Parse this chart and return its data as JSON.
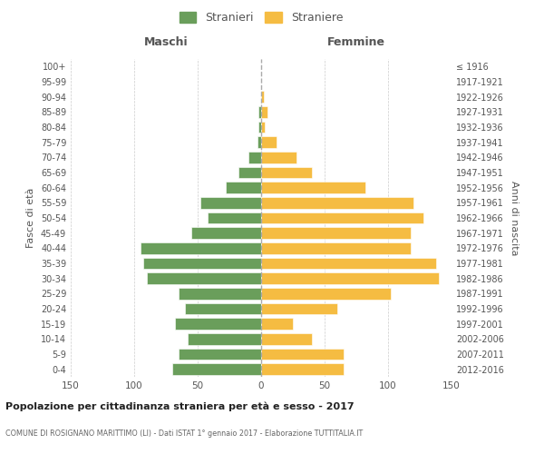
{
  "age_groups": [
    "0-4",
    "5-9",
    "10-14",
    "15-19",
    "20-24",
    "25-29",
    "30-34",
    "35-39",
    "40-44",
    "45-49",
    "50-54",
    "55-59",
    "60-64",
    "65-69",
    "70-74",
    "75-79",
    "80-84",
    "85-89",
    "90-94",
    "95-99",
    "100+"
  ],
  "birth_years": [
    "2012-2016",
    "2007-2011",
    "2002-2006",
    "1997-2001",
    "1992-1996",
    "1987-1991",
    "1982-1986",
    "1977-1981",
    "1972-1976",
    "1967-1971",
    "1962-1966",
    "1957-1961",
    "1952-1956",
    "1947-1951",
    "1942-1946",
    "1937-1941",
    "1932-1936",
    "1927-1931",
    "1922-1926",
    "1917-1921",
    "≤ 1916"
  ],
  "males": [
    70,
    65,
    58,
    68,
    60,
    65,
    90,
    93,
    95,
    55,
    42,
    48,
    28,
    18,
    10,
    3,
    2,
    2,
    0,
    0,
    0
  ],
  "females": [
    65,
    65,
    40,
    25,
    60,
    102,
    140,
    138,
    118,
    118,
    128,
    120,
    82,
    40,
    28,
    12,
    3,
    5,
    2,
    0,
    0
  ],
  "male_color": "#6a9e5b",
  "female_color": "#f5bc42",
  "background_color": "#ffffff",
  "grid_color": "#cccccc",
  "title": "Popolazione per cittadinanza straniera per età e sesso - 2017",
  "subtitle": "COMUNE DI ROSIGNANO MARITTIMO (LI) - Dati ISTAT 1° gennaio 2017 - Elaborazione TUTTITALIA.IT",
  "left_label": "Maschi",
  "right_label": "Femmine",
  "ylabel": "Fasce di età",
  "right_ylabel": "Anni di nascita",
  "legend_male": "Stranieri",
  "legend_female": "Straniere",
  "xlim": 150
}
